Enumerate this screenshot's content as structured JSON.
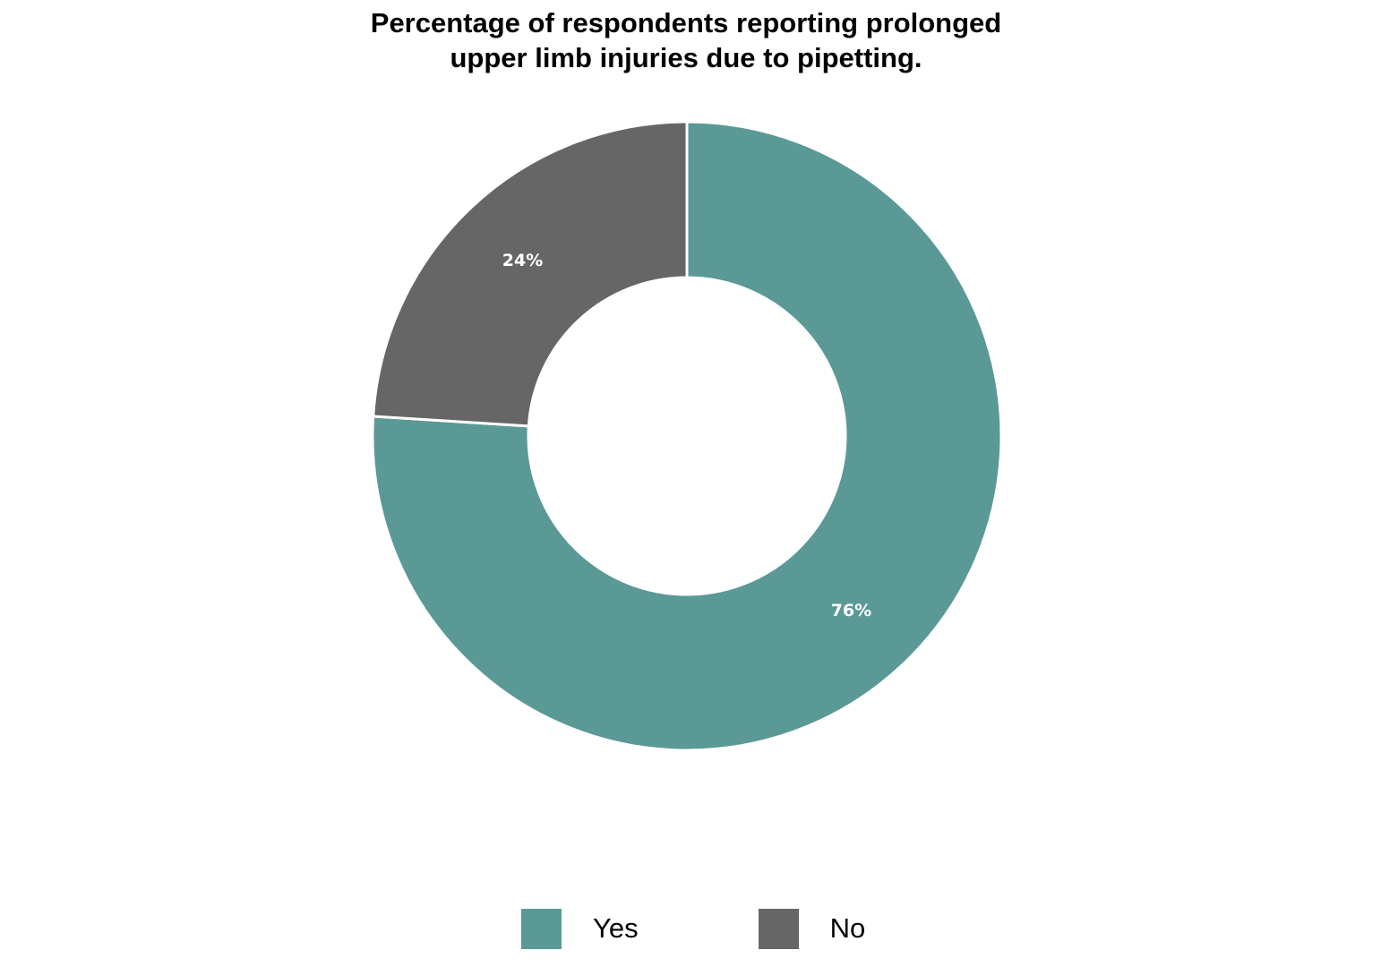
{
  "chart_data": {
    "type": "pie",
    "variant": "donut",
    "title_lines": [
      "Percentage of respondents reporting prolonged",
      "upper limb injuries due to pipetting."
    ],
    "slices": [
      {
        "name": "Yes",
        "value": 76,
        "label": "76%",
        "color": "#5a9996"
      },
      {
        "name": "No",
        "value": 24,
        "label": "24%",
        "color": "#666666"
      }
    ],
    "start": "top",
    "direction": "clockwise",
    "legend_position": "bottom"
  }
}
